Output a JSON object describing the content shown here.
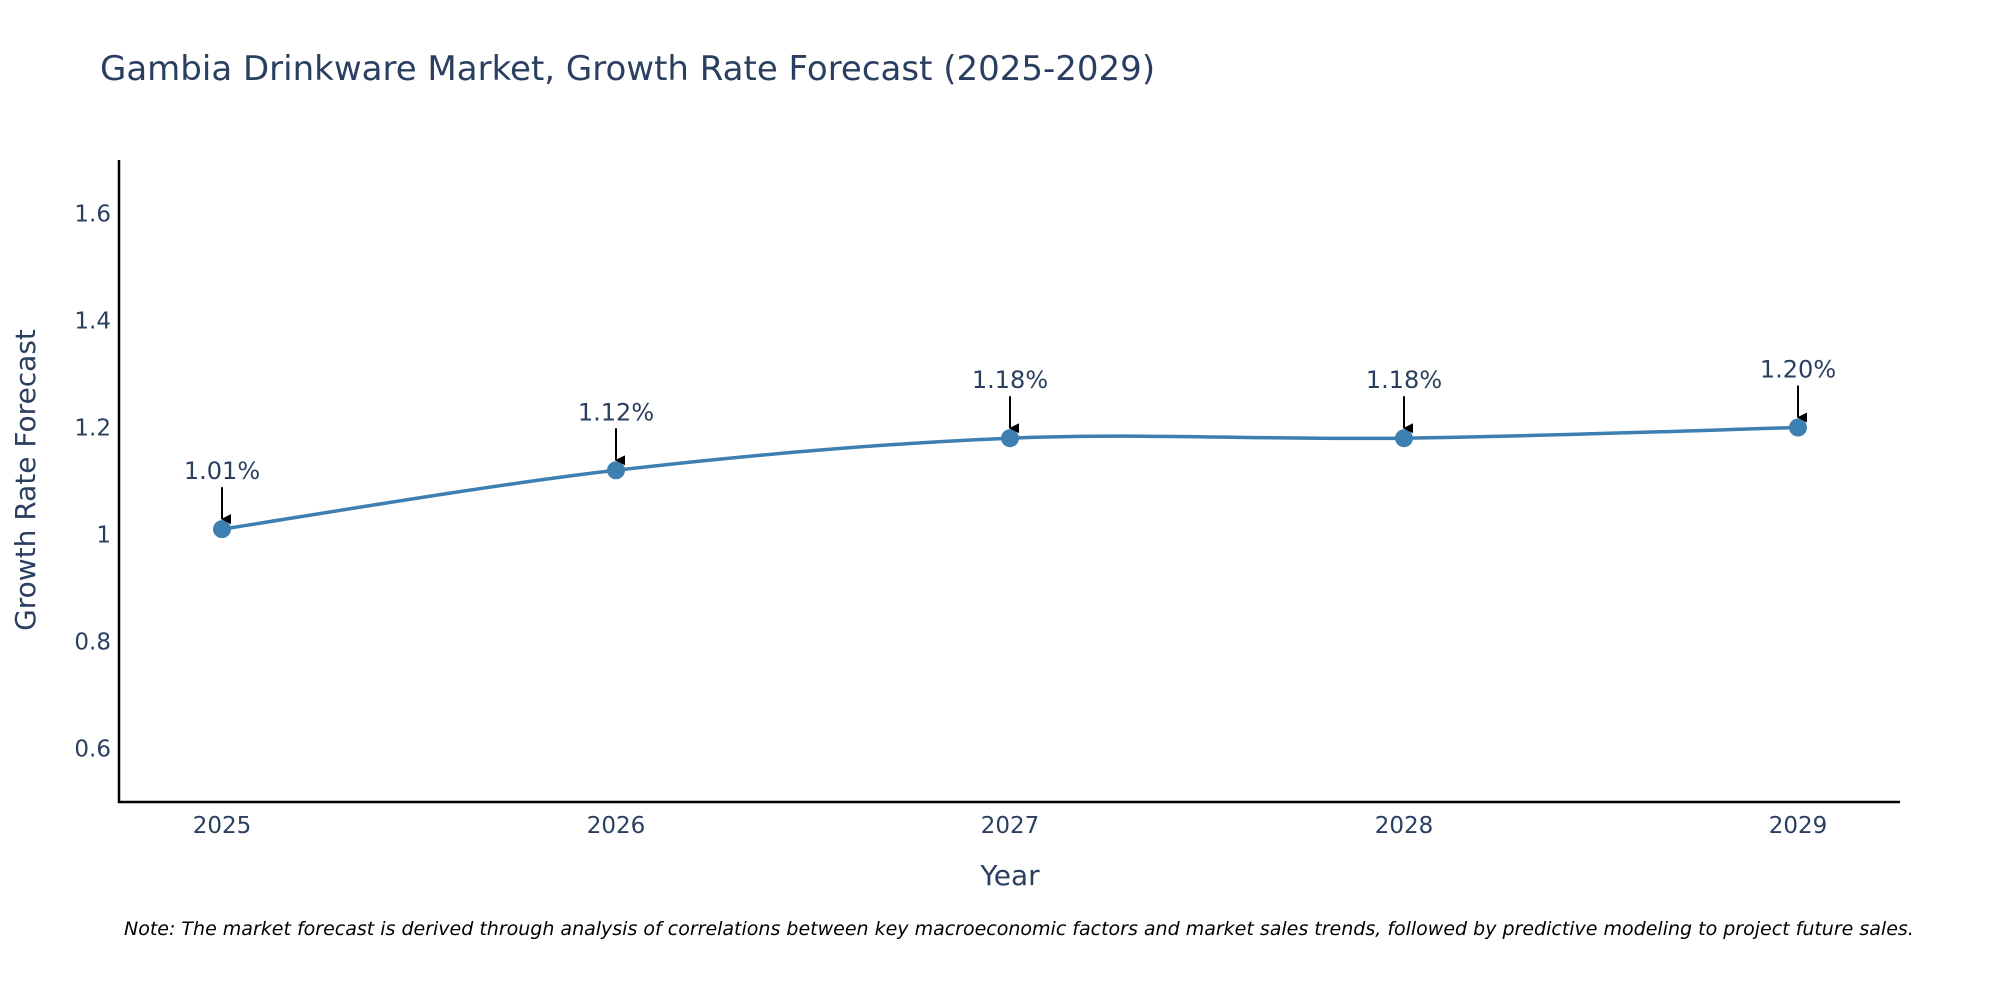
{
  "chart_data": {
    "type": "line",
    "title": "Gambia Drinkware Market, Growth Rate Forecast (2025-2029)",
    "xlabel": "Year",
    "ylabel": "Growth Rate Forecast",
    "categories": [
      "2025",
      "2026",
      "2027",
      "2028",
      "2029"
    ],
    "series": [
      {
        "name": "Growth Rate Forecast",
        "values": [
          1.01,
          1.12,
          1.18,
          1.18,
          1.2
        ],
        "labels": [
          "1.01%",
          "1.12%",
          "1.18%",
          "1.18%",
          "1.20%"
        ],
        "color": "#3d7fb0"
      }
    ],
    "ylim": [
      0.5,
      1.7
    ],
    "yticks": [
      0.6,
      0.8,
      1,
      1.2,
      1.4,
      1.6
    ],
    "ytick_labels": [
      "0.6",
      "0.8",
      "1",
      "1.2",
      "1.4",
      "1.6"
    ],
    "grid": false,
    "line_shape": "spline",
    "annotation_arrows": true
  },
  "note": "Note: The market forecast is derived through analysis of correlations between key macroeconomic factors and market sales trends, followed by predictive modeling to project future sales."
}
